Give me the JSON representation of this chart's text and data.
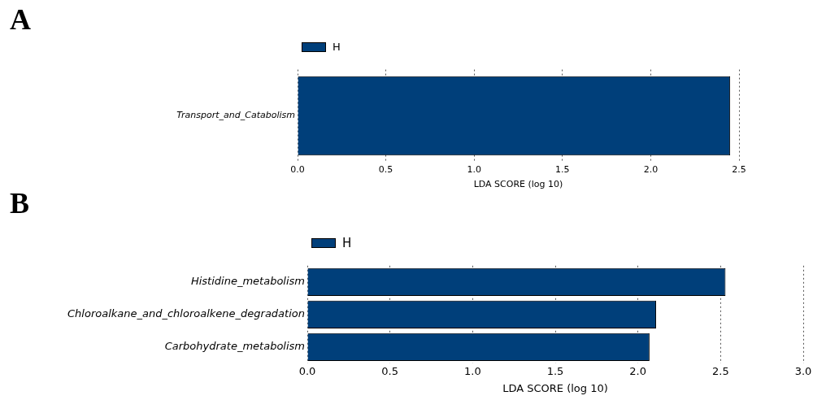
{
  "chart_data": [
    {
      "type": "bar",
      "title": "A",
      "orientation": "horizontal",
      "categories": [
        "Transport_and_Catabolism"
      ],
      "series": [
        {
          "name": "H",
          "color": "#003f7a",
          "values": [
            2.45
          ]
        }
      ],
      "xlim": [
        0,
        2.5
      ],
      "xticks": [
        {
          "value": 0,
          "label": "0.0"
        },
        {
          "value": 0.5,
          "label": "0.5"
        },
        {
          "value": 1,
          "label": "1.0"
        },
        {
          "value": 1.5,
          "label": "1.5"
        },
        {
          "value": 2,
          "label": "2.0"
        },
        {
          "value": 2.5,
          "label": "2.5"
        }
      ],
      "xlabel": "LDA SCORE (log 10)",
      "grid": "x",
      "legend": "top left"
    },
    {
      "type": "bar",
      "title": "B",
      "orientation": "horizontal",
      "categories": [
        "Histidine_metabolism",
        "Chloroalkane_and_chloroalkene_degradation",
        "Carbohydrate_metabolism"
      ],
      "series": [
        {
          "name": "H",
          "color": "#003f7a",
          "values": [
            2.53,
            2.11,
            2.07
          ]
        }
      ],
      "xlim": [
        0,
        3
      ],
      "xticks": [
        {
          "value": 0,
          "label": "0.0"
        },
        {
          "value": 0.5,
          "label": "0.5"
        },
        {
          "value": 1,
          "label": "1.0"
        },
        {
          "value": 1.5,
          "label": "1.5"
        },
        {
          "value": 2,
          "label": "2.0"
        },
        {
          "value": 2.5,
          "label": "2.5"
        },
        {
          "value": 3,
          "label": "3.0"
        }
      ],
      "xlabel": "LDA SCORE (log 10)",
      "grid": "x",
      "legend": "top left"
    }
  ]
}
